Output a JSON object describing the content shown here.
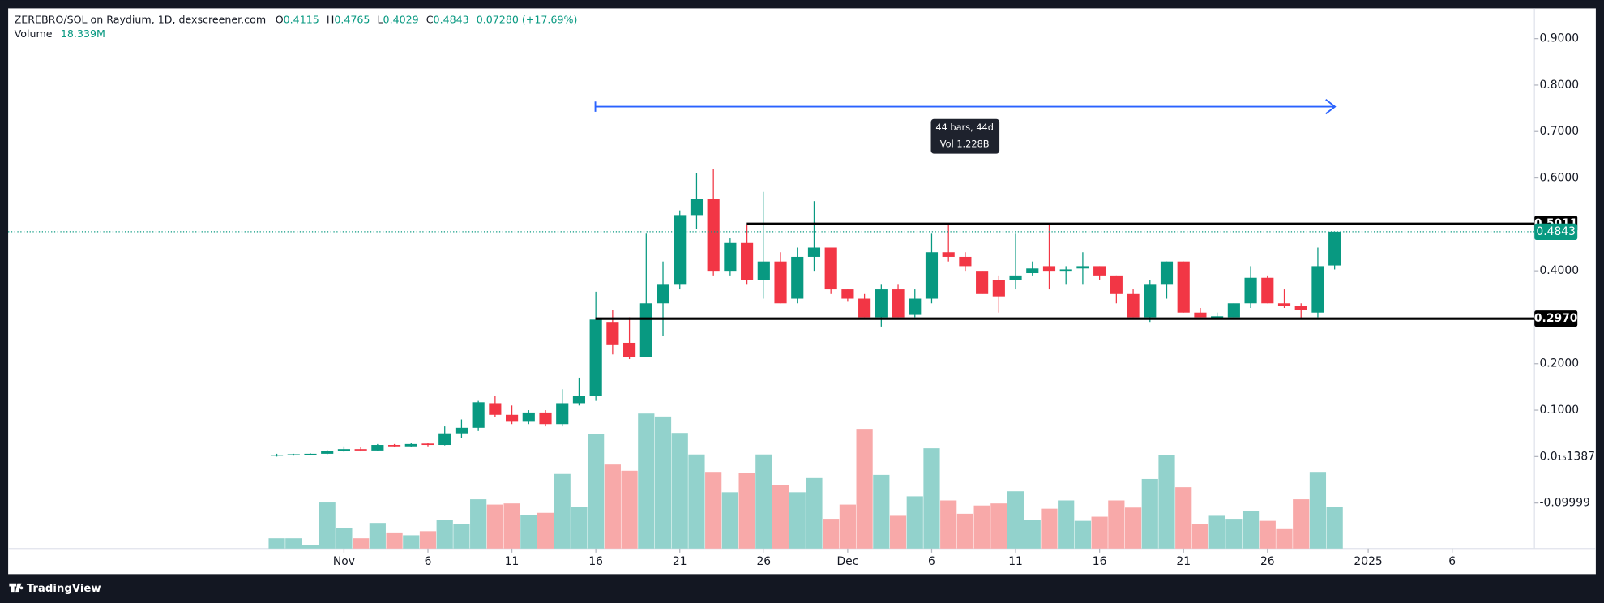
{
  "chart_data": {
    "type": "candlestick",
    "title": "ZEREBRO/SOL on Raydium, 1D, dexscreener.com",
    "ohlc_names": [
      "O",
      "H",
      "L",
      "C"
    ],
    "change_label": "0.07280 (+17.69%)",
    "volume_title": "Volume",
    "volume_label": "18.339M",
    "x": [
      -4,
      -3,
      -2,
      -1,
      0,
      1,
      2,
      3,
      4,
      5,
      6,
      7,
      8,
      9,
      10,
      11,
      12,
      13,
      14,
      15,
      16,
      17,
      18,
      19,
      20,
      21,
      22,
      23,
      24,
      25,
      26,
      27,
      28,
      29,
      30,
      31,
      32,
      33,
      34,
      35,
      36,
      37,
      38,
      39,
      40,
      41,
      42,
      43,
      44,
      45,
      46,
      47,
      48,
      49,
      50,
      51,
      52,
      53,
      54,
      55,
      56,
      57,
      58,
      59
    ],
    "open": [
      0.002,
      0.004,
      0.005,
      0.006,
      0.012,
      0.016,
      0.013,
      0.025,
      0.022,
      0.028,
      0.025,
      0.05,
      0.062,
      0.115,
      0.09,
      0.075,
      0.095,
      0.07,
      0.115,
      0.13,
      0.29,
      0.245,
      0.215,
      0.33,
      0.37,
      0.52,
      0.555,
      0.4,
      0.46,
      0.38,
      0.42,
      0.34,
      0.43,
      0.45,
      0.36,
      0.34,
      0.3,
      0.36,
      0.305,
      0.34,
      0.44,
      0.43,
      0.4,
      0.38,
      0.38,
      0.395,
      0.41,
      0.4,
      0.405,
      0.41,
      0.39,
      0.35,
      0.3,
      0.37,
      0.42,
      0.31,
      0.297,
      0.3,
      0.33,
      0.385,
      0.33,
      0.325,
      0.31,
      0.4115
    ],
    "high": [
      0.006,
      0.006,
      0.007,
      0.014,
      0.022,
      0.02,
      0.027,
      0.027,
      0.03,
      0.03,
      0.065,
      0.08,
      0.12,
      0.13,
      0.11,
      0.1,
      0.1,
      0.145,
      0.17,
      0.355,
      0.315,
      0.3,
      0.48,
      0.42,
      0.53,
      0.61,
      0.62,
      0.47,
      0.5,
      0.57,
      0.44,
      0.45,
      0.55,
      0.45,
      0.36,
      0.35,
      0.37,
      0.37,
      0.36,
      0.48,
      0.5,
      0.44,
      0.4,
      0.39,
      0.48,
      0.42,
      0.5,
      0.41,
      0.44,
      0.41,
      0.39,
      0.36,
      0.38,
      0.42,
      0.42,
      0.32,
      0.31,
      0.33,
      0.41,
      0.39,
      0.36,
      0.33,
      0.45,
      0.4765
    ],
    "low": [
      0.0,
      0.002,
      0.003,
      0.005,
      0.01,
      0.011,
      0.012,
      0.02,
      0.02,
      0.022,
      0.024,
      0.04,
      0.055,
      0.085,
      0.07,
      0.07,
      0.065,
      0.065,
      0.11,
      0.12,
      0.22,
      0.21,
      0.215,
      0.26,
      0.36,
      0.49,
      0.39,
      0.39,
      0.37,
      0.34,
      0.33,
      0.33,
      0.4,
      0.35,
      0.335,
      0.3,
      0.28,
      0.3,
      0.3,
      0.33,
      0.42,
      0.4,
      0.35,
      0.31,
      0.36,
      0.39,
      0.36,
      0.37,
      0.37,
      0.38,
      0.33,
      0.3,
      0.29,
      0.34,
      0.31,
      0.3,
      0.295,
      0.3,
      0.32,
      0.33,
      0.32,
      0.295,
      0.3,
      0.4029
    ],
    "close": [
      0.004,
      0.005,
      0.006,
      0.012,
      0.016,
      0.013,
      0.025,
      0.022,
      0.027,
      0.025,
      0.05,
      0.062,
      0.117,
      0.09,
      0.075,
      0.095,
      0.07,
      0.115,
      0.13,
      0.295,
      0.24,
      0.215,
      0.33,
      0.37,
      0.52,
      0.555,
      0.4,
      0.46,
      0.38,
      0.42,
      0.33,
      0.43,
      0.45,
      0.36,
      0.34,
      0.3,
      0.36,
      0.3,
      0.34,
      0.44,
      0.43,
      0.41,
      0.35,
      0.345,
      0.39,
      0.405,
      0.4,
      0.403,
      0.41,
      0.39,
      0.35,
      0.3,
      0.37,
      0.42,
      0.31,
      0.3,
      0.302,
      0.33,
      0.385,
      0.33,
      0.325,
      0.315,
      0.41,
      0.4843
    ],
    "volume": [
      4.47,
      4.47,
      1.34,
      20.1,
      8.94,
      4.47,
      11.2,
      6.7,
      5.8,
      7.6,
      12.5,
      10.7,
      21.5,
      19.2,
      19.7,
      14.8,
      15.6,
      32.6,
      18.3,
      50.1,
      36.7,
      34,
      59,
      57.7,
      50.5,
      41.1,
      33.5,
      24.6,
      33.1,
      41.1,
      27.7,
      24.6,
      30.8,
      13,
      19.2,
      52.3,
      32.2,
      14.3,
      22.8,
      43.8,
      21,
      15.2,
      18.8,
      19.7,
      25,
      12.5,
      17.4,
      21,
      12.1,
      13.9,
      21,
      17.9,
      30.4,
      40.7,
      26.8,
      10.7,
      14.3,
      13,
      16.5,
      12.1,
      8.5,
      21.5,
      33.5,
      18.339
    ],
    "up_color": "#089981",
    "down_color": "#f23645",
    "up_volume_color": "#92d2cc",
    "down_volume_color": "#f8a9a9",
    "xlim": [
      -20,
      70.9
    ],
    "xticks": [
      {
        "value": 0,
        "label": "Nov"
      },
      5,
      10,
      15,
      20,
      25,
      {
        "value": 30,
        "label": "Dec"
      },
      35,
      40,
      45,
      50,
      55,
      {
        "value": 61,
        "label": "2025"
      },
      66
    ],
    "xtick_labels": [
      "Nov",
      "6",
      "11",
      "16",
      "21",
      "26",
      "Dec",
      "6",
      "11",
      "16",
      "21",
      "26",
      "2025",
      "6"
    ],
    "ylim": [
      -0.198,
      0.965
    ],
    "yticks": [
      {
        "value": 0.9,
        "label": "0.9000"
      },
      {
        "value": 0.8,
        "label": "0.8000"
      },
      {
        "value": 0.7,
        "label": "0.7000"
      },
      {
        "value": 0.6,
        "label": "0.6000"
      },
      {
        "value": 0.4,
        "label": "0.4000"
      },
      {
        "value": 0.2,
        "label": "0.2000"
      },
      {
        "value": 0.1,
        "label": "0.1000"
      },
      {
        "value": 1.387e-16,
        "label": "0.0₁₅1387"
      },
      -0.09999
    ],
    "hlines": [
      {
        "value": 0.5011,
        "label": "0.5011"
      },
      {
        "value": 0.297,
        "label": "0.2970"
      }
    ],
    "measure_lines": [
      "44 bars, 44d",
      "Vol 1.228B"
    ]
  },
  "branding": "TradingView"
}
